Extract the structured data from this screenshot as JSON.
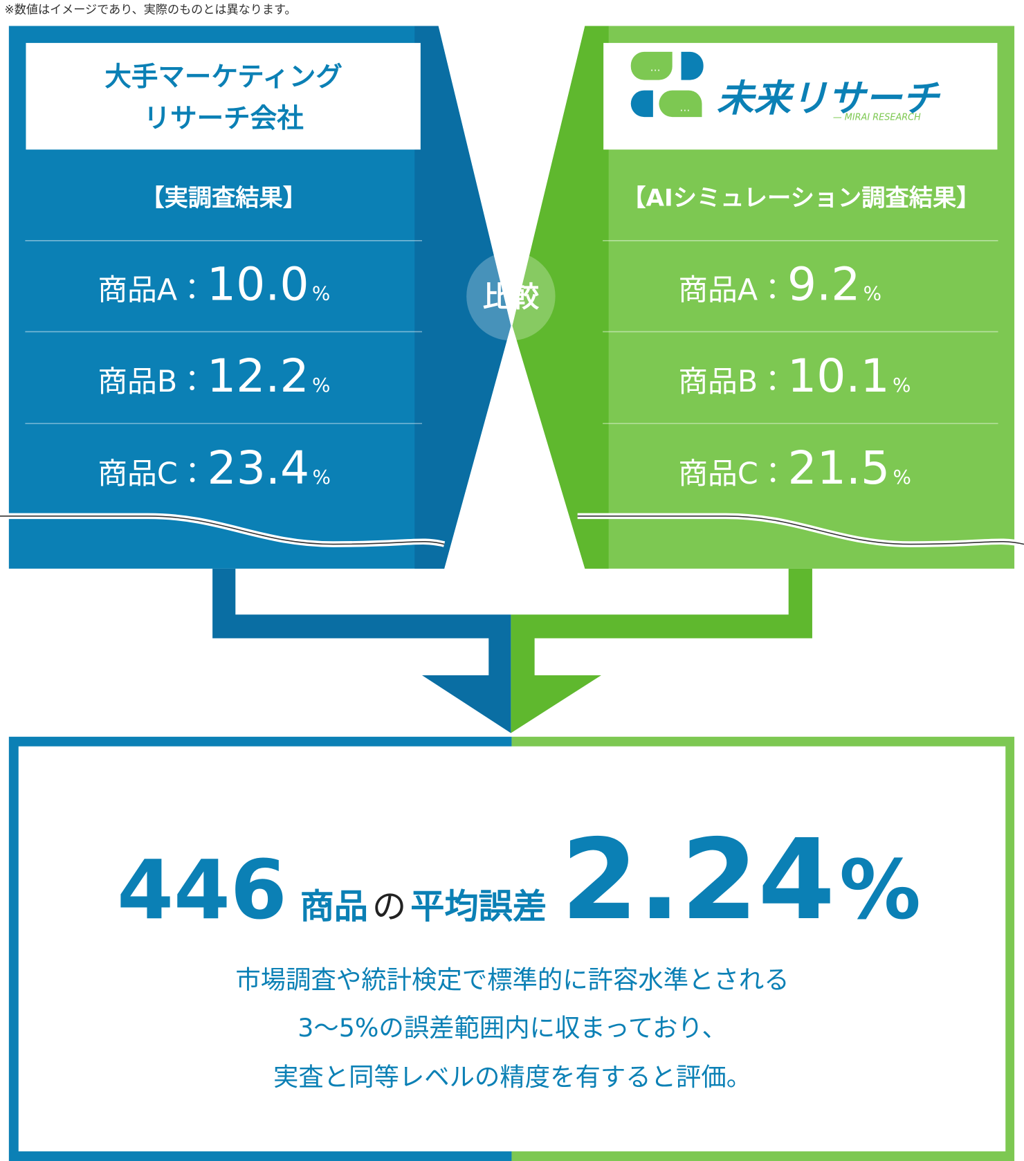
{
  "note": "※数値はイメージであり、実際のものとは異なります。",
  "left": {
    "title_lines": [
      "大手マーケティング",
      "リサーチ会社"
    ],
    "subtitle": "【実調査結果】",
    "rows": [
      {
        "label": "商品A：",
        "value": "10.0",
        "unit": "%"
      },
      {
        "label": "商品B：",
        "value": "12.2",
        "unit": "%"
      },
      {
        "label": "商品C：",
        "value": "23.4",
        "unit": "%"
      }
    ]
  },
  "right": {
    "logo": {
      "name": "未来リサーチ",
      "sub": "— MIRAI RESEARCH"
    },
    "subtitle": "【AIシミュレーション調査結果】",
    "rows": [
      {
        "label": "商品A：",
        "value": "9.2",
        "unit": "%"
      },
      {
        "label": "商品B：",
        "value": "10.1",
        "unit": "%"
      },
      {
        "label": "商品C：",
        "value": "21.5",
        "unit": "%"
      }
    ]
  },
  "compare": "比較",
  "result": {
    "count": "446",
    "text_a": "商品",
    "text_b": "の",
    "text_c": "平均誤差",
    "value": "2.24",
    "unit": "%",
    "description": [
      "市場調査や統計検定で標準的に許容水準とされる",
      "3〜5%の誤差範囲内に収まっており、",
      "実査と同等レベルの精度を有すると評価。"
    ]
  }
}
